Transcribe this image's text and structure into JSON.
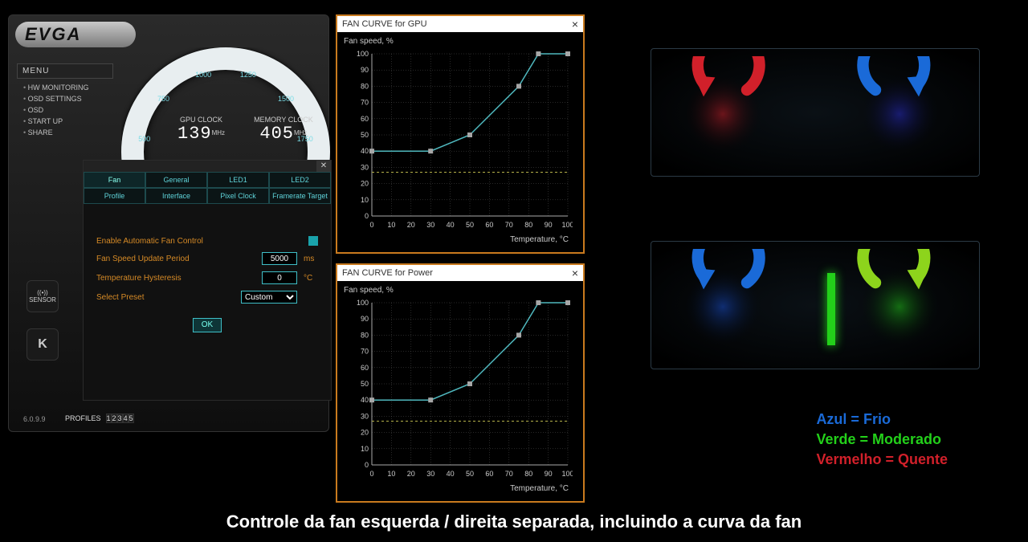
{
  "brand": "EVGA",
  "menu": {
    "header": "MENU",
    "items": [
      "HW MONITORING",
      "OSD SETTINGS",
      "OSD",
      "START UP",
      "SHARE"
    ]
  },
  "gauge": {
    "tick_values": [
      500,
      750,
      1000,
      1250,
      1500,
      1750
    ],
    "gpu_clock": {
      "label": "GPU CLOCK",
      "value": "139",
      "unit": "MHz"
    },
    "mem_clock": {
      "label": "MEMORY CLOCK",
      "value": "405",
      "unit": "MHz"
    },
    "ring_color": "#e8eef0",
    "tick_color": "#5fd3d9"
  },
  "settings_dialog": {
    "tabs_row1": [
      "Fan",
      "General",
      "LED1",
      "LED2"
    ],
    "tabs_row2": [
      "Profile",
      "Interface",
      "Pixel Clock",
      "Framerate Target"
    ],
    "active_tab": "Fan",
    "fields": {
      "enable_auto": {
        "label": "Enable Automatic Fan Control",
        "checked": true
      },
      "update_period": {
        "label": "Fan Speed Update Period",
        "value": "5000",
        "unit": "ms"
      },
      "hysteresis": {
        "label": "Temperature Hysteresis",
        "value": "0",
        "unit": "°C"
      },
      "preset": {
        "label": "Select Preset",
        "value": "Custom"
      }
    },
    "ok": "OK",
    "accent": "#3fbfc7",
    "label_color": "#d68a26"
  },
  "side": {
    "sensor": "SENSOR",
    "k": "K"
  },
  "version": "6.0.9.9",
  "profiles": {
    "label": "PROFILES",
    "buttons": [
      "1",
      "2",
      "3",
      "4",
      "5"
    ]
  },
  "fan_curve_gpu": {
    "title": "FAN CURVE for GPU",
    "ylabel": "Fan speed, %",
    "xlabel": "Temperature, °C",
    "xlim": [
      0,
      100
    ],
    "ylim": [
      0,
      100
    ],
    "xticks": [
      0,
      10,
      20,
      30,
      40,
      50,
      60,
      70,
      80,
      90,
      100
    ],
    "yticks": [
      0,
      10,
      20,
      30,
      40,
      50,
      60,
      70,
      80,
      90,
      100
    ],
    "points": [
      [
        0,
        40
      ],
      [
        30,
        40
      ],
      [
        50,
        50
      ],
      [
        75,
        80
      ],
      [
        85,
        100
      ],
      [
        100,
        100
      ]
    ],
    "hline": 27,
    "line_color": "#4fb7bd",
    "marker_color": "#a7a7a7",
    "grid_color": "#666",
    "axis_color": "#aaa",
    "hline_color": "#b6b24a",
    "bg": "#000"
  },
  "fan_curve_power": {
    "title": "FAN CURVE for Power",
    "ylabel": "Fan speed, %",
    "xlabel": "Temperature, °C",
    "xlim": [
      0,
      100
    ],
    "ylim": [
      0,
      100
    ],
    "xticks": [
      0,
      10,
      20,
      30,
      40,
      50,
      60,
      70,
      80,
      90,
      100
    ],
    "yticks": [
      0,
      10,
      20,
      30,
      40,
      50,
      60,
      70,
      80,
      90,
      100
    ],
    "points": [
      [
        0,
        40
      ],
      [
        30,
        40
      ],
      [
        50,
        50
      ],
      [
        75,
        80
      ],
      [
        85,
        100
      ],
      [
        100,
        100
      ]
    ],
    "hline": 27,
    "line_color": "#4fb7bd",
    "marker_color": "#a7a7a7",
    "grid_color": "#666",
    "axis_color": "#aaa",
    "hline_color": "#b6b24a",
    "bg": "#000"
  },
  "cards": {
    "top": {
      "left_arrow_color": "#d1202a",
      "right_arrow_color": "#1a6ad8",
      "left_glow": "#d1202a",
      "right_glow": "#2b2ed1"
    },
    "bot": {
      "left_arrow_color": "#1a6ad8",
      "right_arrow_color": "#8dd41c",
      "left_glow": "#1a52d8",
      "right_glow": "#23d01a"
    }
  },
  "legend": {
    "blue": {
      "text": "Azul = Frio",
      "color": "#1a6ad8"
    },
    "green": {
      "text": "Verde = Moderado",
      "color": "#23d01a"
    },
    "red": {
      "text": "Vermelho = Quente",
      "color": "#d1202a"
    }
  },
  "caption": "Controle da fan esquerda / direita separada, incluindo a curva da fan"
}
